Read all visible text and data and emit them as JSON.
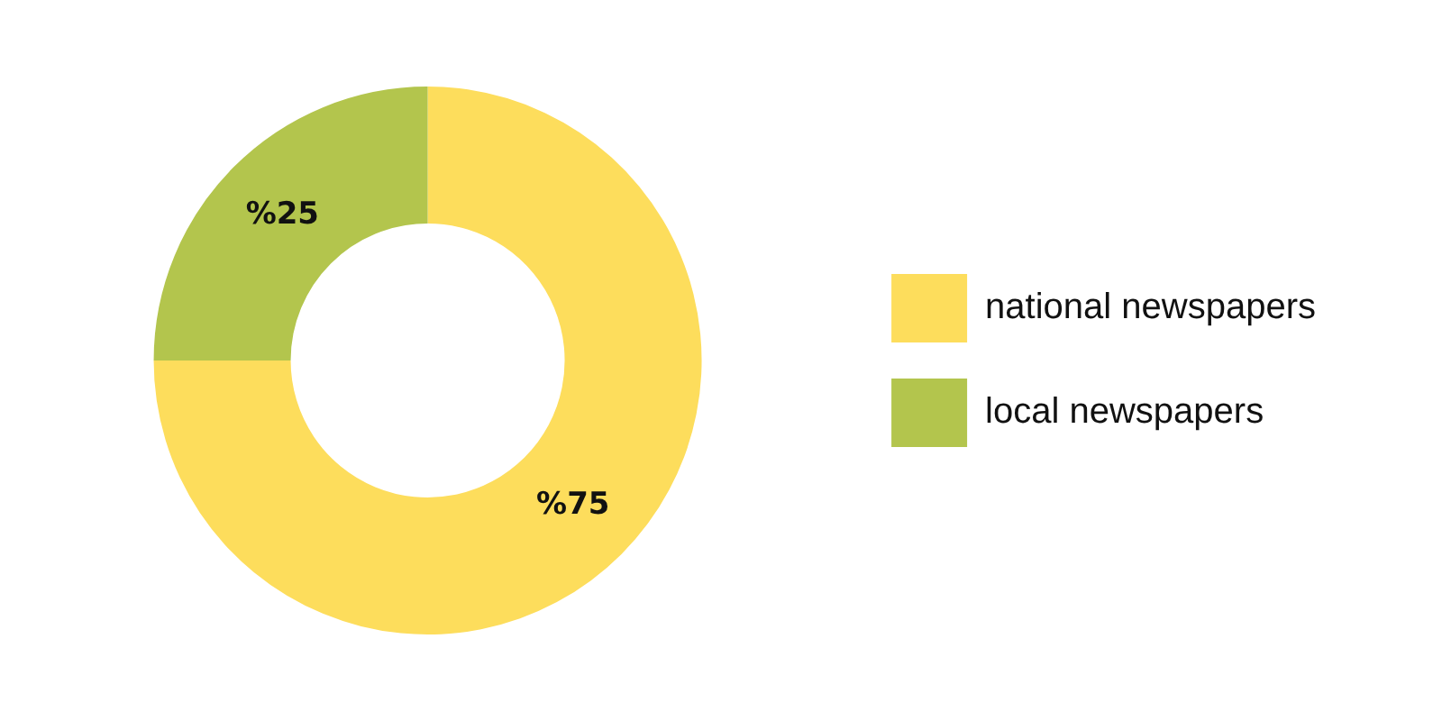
{
  "chart_data": {
    "type": "donut",
    "categories": [
      "national newspapers",
      "local newspapers"
    ],
    "values": [
      75,
      25
    ],
    "colors": [
      "#fddd5c",
      "#b3c54d"
    ],
    "value_labels": [
      "%75",
      "%25"
    ],
    "legend": "right"
  }
}
